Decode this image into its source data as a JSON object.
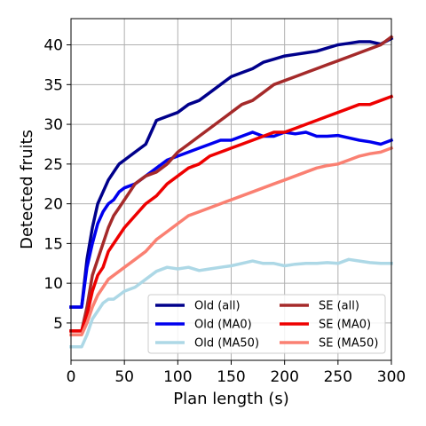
{
  "chart_data": {
    "type": "line",
    "xlabel": "Plan length (s)",
    "ylabel": "Detected fruits",
    "xlim": [
      0,
      300
    ],
    "ylim": [
      0.3,
      43.3
    ],
    "xticks": [
      0,
      50,
      100,
      150,
      200,
      250,
      300
    ],
    "yticks": [
      5,
      10,
      15,
      20,
      25,
      30,
      35,
      40
    ],
    "grid": true,
    "legend": {
      "placement": "lower-right",
      "columns": 2
    },
    "series": [
      {
        "name": "Old (all)",
        "color": "#00008b",
        "x": [
          0,
          10,
          15,
          20,
          25,
          30,
          35,
          40,
          45,
          50,
          60,
          70,
          80,
          90,
          100,
          110,
          120,
          130,
          140,
          150,
          160,
          170,
          180,
          190,
          200,
          210,
          220,
          230,
          240,
          250,
          260,
          270,
          280,
          290,
          300
        ],
        "y": [
          7,
          7,
          13,
          17,
          20,
          21.5,
          23,
          24,
          25,
          25.5,
          26.5,
          27.5,
          30.5,
          31,
          31.5,
          32.5,
          33,
          34,
          35,
          36,
          36.5,
          37,
          37.8,
          38.2,
          38.6,
          38.8,
          39,
          39.2,
          39.6,
          40,
          40.2,
          40.4,
          40.4,
          40.1,
          40.8
        ]
      },
      {
        "name": "Old (MA0)",
        "color": "#0000ee",
        "x": [
          0,
          10,
          15,
          20,
          25,
          30,
          35,
          40,
          45,
          50,
          60,
          70,
          80,
          90,
          100,
          110,
          120,
          130,
          140,
          150,
          160,
          170,
          180,
          190,
          200,
          210,
          220,
          230,
          240,
          250,
          260,
          270,
          280,
          290,
          300
        ],
        "y": [
          7,
          7,
          12,
          15,
          17.5,
          19,
          20,
          20.5,
          21.5,
          22,
          22.5,
          23.5,
          24.5,
          25.5,
          26,
          26.5,
          27,
          27.5,
          28,
          28,
          28.5,
          29,
          28.5,
          28.5,
          29,
          28.8,
          29,
          28.5,
          28.5,
          28.6,
          28.3,
          28,
          27.8,
          27.5,
          28
        ]
      },
      {
        "name": "Old (MA50)",
        "color": "#add8e6",
        "x": [
          0,
          10,
          15,
          20,
          25,
          30,
          35,
          40,
          45,
          50,
          60,
          70,
          80,
          90,
          100,
          110,
          120,
          130,
          140,
          150,
          160,
          170,
          180,
          190,
          200,
          210,
          220,
          230,
          240,
          250,
          260,
          270,
          280,
          290,
          300
        ],
        "y": [
          2,
          2,
          3.5,
          5.5,
          6.5,
          7.5,
          8,
          8,
          8.5,
          9,
          9.5,
          10.5,
          11.5,
          12,
          11.8,
          12,
          11.6,
          11.8,
          12,
          12.2,
          12.5,
          12.8,
          12.5,
          12.5,
          12.2,
          12.4,
          12.5,
          12.5,
          12.6,
          12.5,
          13,
          12.8,
          12.6,
          12.5,
          12.5
        ]
      },
      {
        "name": "SE (all)",
        "color": "#a52a2a",
        "x": [
          0,
          10,
          15,
          20,
          25,
          30,
          35,
          40,
          45,
          50,
          60,
          70,
          80,
          90,
          100,
          110,
          120,
          130,
          140,
          150,
          160,
          170,
          180,
          190,
          200,
          210,
          220,
          230,
          240,
          250,
          260,
          270,
          280,
          290,
          300
        ],
        "y": [
          4,
          4,
          7,
          11,
          13,
          15,
          17,
          18.5,
          19.5,
          20.5,
          22.5,
          23.5,
          24,
          25,
          26.5,
          27.5,
          28.5,
          29.5,
          30.5,
          31.5,
          32.5,
          33,
          34,
          35,
          35.5,
          36,
          36.5,
          37,
          37.5,
          38,
          38.5,
          39,
          39.5,
          40,
          41
        ]
      },
      {
        "name": "SE (MA0)",
        "color": "#ee0000",
        "x": [
          0,
          10,
          15,
          20,
          25,
          30,
          35,
          40,
          45,
          50,
          60,
          70,
          80,
          90,
          100,
          110,
          120,
          130,
          140,
          150,
          160,
          170,
          180,
          190,
          200,
          210,
          220,
          230,
          240,
          250,
          260,
          270,
          280,
          290,
          300
        ],
        "y": [
          4,
          4,
          6,
          9,
          11,
          12,
          14,
          15,
          16,
          17,
          18.5,
          20,
          21,
          22.5,
          23.5,
          24.5,
          25,
          26,
          26.5,
          27,
          27.5,
          28,
          28.5,
          29,
          29,
          29.5,
          30,
          30.5,
          31,
          31.5,
          32,
          32.5,
          32.5,
          33,
          33.5
        ]
      },
      {
        "name": "SE (MA50)",
        "color": "#fa8072",
        "x": [
          0,
          10,
          15,
          20,
          25,
          30,
          35,
          40,
          45,
          50,
          60,
          70,
          80,
          90,
          100,
          110,
          120,
          130,
          140,
          150,
          160,
          170,
          180,
          190,
          200,
          210,
          220,
          230,
          240,
          250,
          260,
          270,
          280,
          290,
          300
        ],
        "y": [
          3.5,
          3.5,
          5,
          7,
          8.5,
          9.5,
          10.5,
          11,
          11.5,
          12,
          13,
          14,
          15.5,
          16.5,
          17.5,
          18.5,
          19,
          19.5,
          20,
          20.5,
          21,
          21.5,
          22,
          22.5,
          23,
          23.5,
          24,
          24.5,
          24.8,
          25,
          25.5,
          26,
          26.3,
          26.5,
          27
        ]
      }
    ]
  }
}
